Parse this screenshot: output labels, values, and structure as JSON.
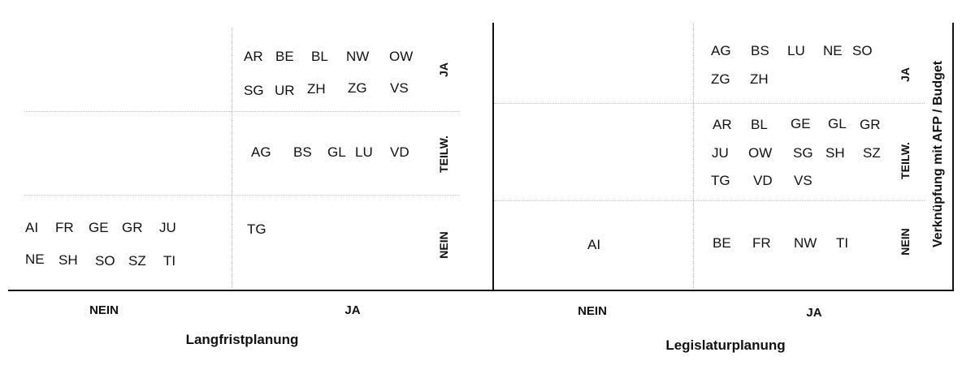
{
  "left_panel": {
    "title": "Langfristplanung",
    "col_labels": [
      "NEIN",
      "JA"
    ],
    "row_labels": [
      "JA",
      "TEILW.",
      "NEIN"
    ],
    "cells": {
      "ja_ja": [
        "AR",
        "BE",
        "BL",
        "NW",
        "OW",
        "SG",
        "UR",
        "ZH",
        "ZG",
        "VS"
      ],
      "ja_teilw": [
        "AG",
        "BS",
        "GL",
        "LU",
        "VD"
      ],
      "nein_nein": [
        "AI",
        "FR",
        "GE",
        "GR",
        "JU",
        "NE",
        "SH",
        "SO",
        "SZ",
        "TI"
      ],
      "ja_nein": [
        "TG"
      ]
    }
  },
  "right_panel": {
    "title": "Legislaturplanung",
    "col_labels": [
      "NEIN",
      "JA"
    ],
    "row_labels": [
      "JA",
      "TEILW.",
      "NEIN"
    ],
    "cells": {
      "ja_ja": [
        "AG",
        "BS",
        "LU",
        "NE",
        "SO",
        "ZG",
        "ZH"
      ],
      "ja_teilw": [
        "AR",
        "BL",
        "GE",
        "GL",
        "GR",
        "JU",
        "OW",
        "SG",
        "SH",
        "SZ",
        "TG",
        "VD",
        "VS"
      ],
      "nein_nein": [
        "AI"
      ],
      "ja_nein": [
        "BE",
        "FR",
        "NW",
        "TI"
      ]
    }
  },
  "side_label": "Verknüpfung mit AFP / Budget"
}
